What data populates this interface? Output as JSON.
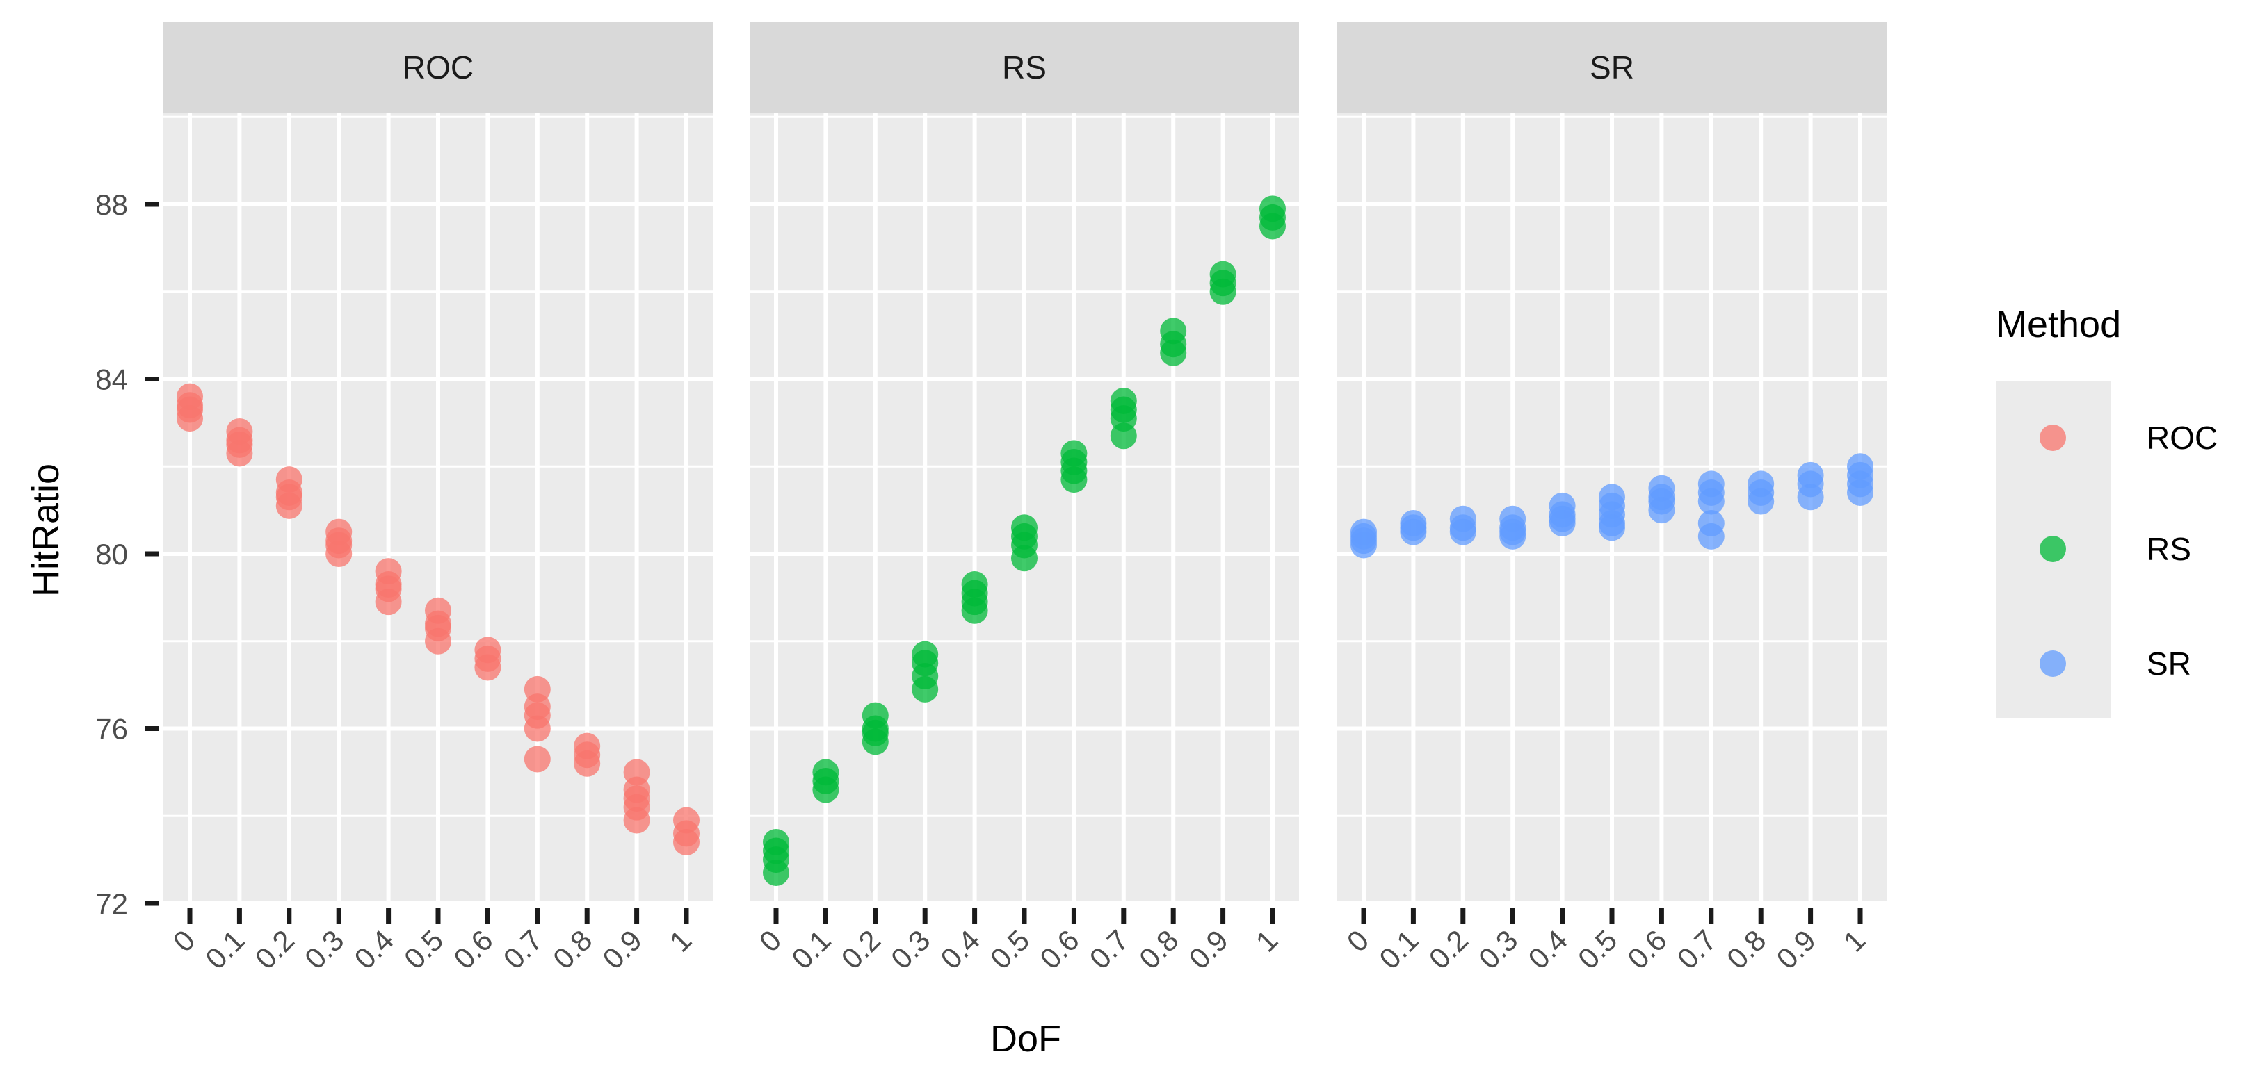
{
  "chart_data": {
    "type": "scatter",
    "facet_labels": [
      "ROC",
      "RS",
      "SR"
    ],
    "xlabel": "DoF",
    "ylabel": "HitRatio",
    "x_ticks": [
      "0",
      "0.1",
      "0.2",
      "0.3",
      "0.4",
      "0.5",
      "0.6",
      "0.7",
      "0.8",
      "0.9",
      "1"
    ],
    "y_ticks": [
      72,
      76,
      80,
      84,
      88
    ],
    "ylim": [
      72,
      90.1
    ],
    "grid": true,
    "legend": {
      "title": "Method",
      "placement": "right",
      "entries": [
        "ROC",
        "RS",
        "SR"
      ]
    },
    "colors": {
      "ROC": "#F8766D",
      "RS": "#00BA38",
      "SR": "#619CFF"
    },
    "panel_background": "#EBEBEB",
    "strip_background": "#D9D9D9",
    "series": [
      {
        "name": "ROC",
        "points": [
          [
            0,
            83.6
          ],
          [
            0,
            83.4
          ],
          [
            0,
            83.3
          ],
          [
            0,
            83.1
          ],
          [
            0.1,
            82.8
          ],
          [
            0.1,
            82.6
          ],
          [
            0.1,
            82.5
          ],
          [
            0.1,
            82.3
          ],
          [
            0.2,
            81.7
          ],
          [
            0.2,
            81.4
          ],
          [
            0.2,
            81.3
          ],
          [
            0.2,
            81.1
          ],
          [
            0.3,
            80.5
          ],
          [
            0.3,
            80.3
          ],
          [
            0.3,
            80.2
          ],
          [
            0.3,
            80.0
          ],
          [
            0.4,
            79.6
          ],
          [
            0.4,
            79.3
          ],
          [
            0.4,
            79.2
          ],
          [
            0.4,
            78.9
          ],
          [
            0.5,
            78.7
          ],
          [
            0.5,
            78.4
          ],
          [
            0.5,
            78.3
          ],
          [
            0.5,
            78.0
          ],
          [
            0.6,
            77.8
          ],
          [
            0.6,
            77.6
          ],
          [
            0.6,
            77.4
          ],
          [
            0.7,
            76.9
          ],
          [
            0.7,
            76.5
          ],
          [
            0.7,
            76.3
          ],
          [
            0.7,
            76.0
          ],
          [
            0.7,
            75.3
          ],
          [
            0.8,
            75.6
          ],
          [
            0.8,
            75.4
          ],
          [
            0.8,
            75.2
          ],
          [
            0.9,
            75.0
          ],
          [
            0.9,
            74.6
          ],
          [
            0.9,
            74.4
          ],
          [
            0.9,
            74.2
          ],
          [
            0.9,
            73.9
          ],
          [
            1,
            73.9
          ],
          [
            1,
            73.6
          ],
          [
            1,
            73.4
          ]
        ]
      },
      {
        "name": "RS",
        "points": [
          [
            0,
            73.4
          ],
          [
            0,
            73.2
          ],
          [
            0,
            73.0
          ],
          [
            0,
            72.7
          ],
          [
            0.1,
            75.0
          ],
          [
            0.1,
            74.8
          ],
          [
            0.1,
            74.6
          ],
          [
            0.2,
            76.3
          ],
          [
            0.2,
            76.0
          ],
          [
            0.2,
            75.9
          ],
          [
            0.2,
            75.7
          ],
          [
            0.3,
            77.7
          ],
          [
            0.3,
            77.5
          ],
          [
            0.3,
            77.2
          ],
          [
            0.3,
            76.9
          ],
          [
            0.4,
            79.3
          ],
          [
            0.4,
            79.1
          ],
          [
            0.4,
            78.9
          ],
          [
            0.4,
            78.7
          ],
          [
            0.5,
            80.6
          ],
          [
            0.5,
            80.4
          ],
          [
            0.5,
            80.2
          ],
          [
            0.5,
            79.9
          ],
          [
            0.6,
            82.3
          ],
          [
            0.6,
            82.1
          ],
          [
            0.6,
            81.9
          ],
          [
            0.6,
            81.7
          ],
          [
            0.7,
            83.5
          ],
          [
            0.7,
            83.3
          ],
          [
            0.7,
            83.1
          ],
          [
            0.7,
            82.7
          ],
          [
            0.8,
            85.1
          ],
          [
            0.8,
            84.8
          ],
          [
            0.8,
            84.6
          ],
          [
            0.9,
            86.4
          ],
          [
            0.9,
            86.2
          ],
          [
            0.9,
            86.0
          ],
          [
            1,
            87.9
          ],
          [
            1,
            87.7
          ],
          [
            1,
            87.5
          ]
        ]
      },
      {
        "name": "SR",
        "points": [
          [
            0,
            80.5
          ],
          [
            0,
            80.4
          ],
          [
            0,
            80.3
          ],
          [
            0,
            80.2
          ],
          [
            0.1,
            80.7
          ],
          [
            0.1,
            80.6
          ],
          [
            0.1,
            80.5
          ],
          [
            0.2,
            80.8
          ],
          [
            0.2,
            80.6
          ],
          [
            0.2,
            80.5
          ],
          [
            0.3,
            80.8
          ],
          [
            0.3,
            80.6
          ],
          [
            0.3,
            80.5
          ],
          [
            0.3,
            80.4
          ],
          [
            0.4,
            81.1
          ],
          [
            0.4,
            80.9
          ],
          [
            0.4,
            80.8
          ],
          [
            0.4,
            80.7
          ],
          [
            0.5,
            81.3
          ],
          [
            0.5,
            81.1
          ],
          [
            0.5,
            80.9
          ],
          [
            0.5,
            80.7
          ],
          [
            0.5,
            80.6
          ],
          [
            0.6,
            81.5
          ],
          [
            0.6,
            81.3
          ],
          [
            0.6,
            81.2
          ],
          [
            0.6,
            81.0
          ],
          [
            0.7,
            81.6
          ],
          [
            0.7,
            81.4
          ],
          [
            0.7,
            81.2
          ],
          [
            0.7,
            80.7
          ],
          [
            0.7,
            80.4
          ],
          [
            0.8,
            81.6
          ],
          [
            0.8,
            81.4
          ],
          [
            0.8,
            81.2
          ],
          [
            0.9,
            81.8
          ],
          [
            0.9,
            81.6
          ],
          [
            0.9,
            81.3
          ],
          [
            1,
            82.0
          ],
          [
            1,
            81.8
          ],
          [
            1,
            81.6
          ],
          [
            1,
            81.4
          ]
        ]
      }
    ]
  }
}
